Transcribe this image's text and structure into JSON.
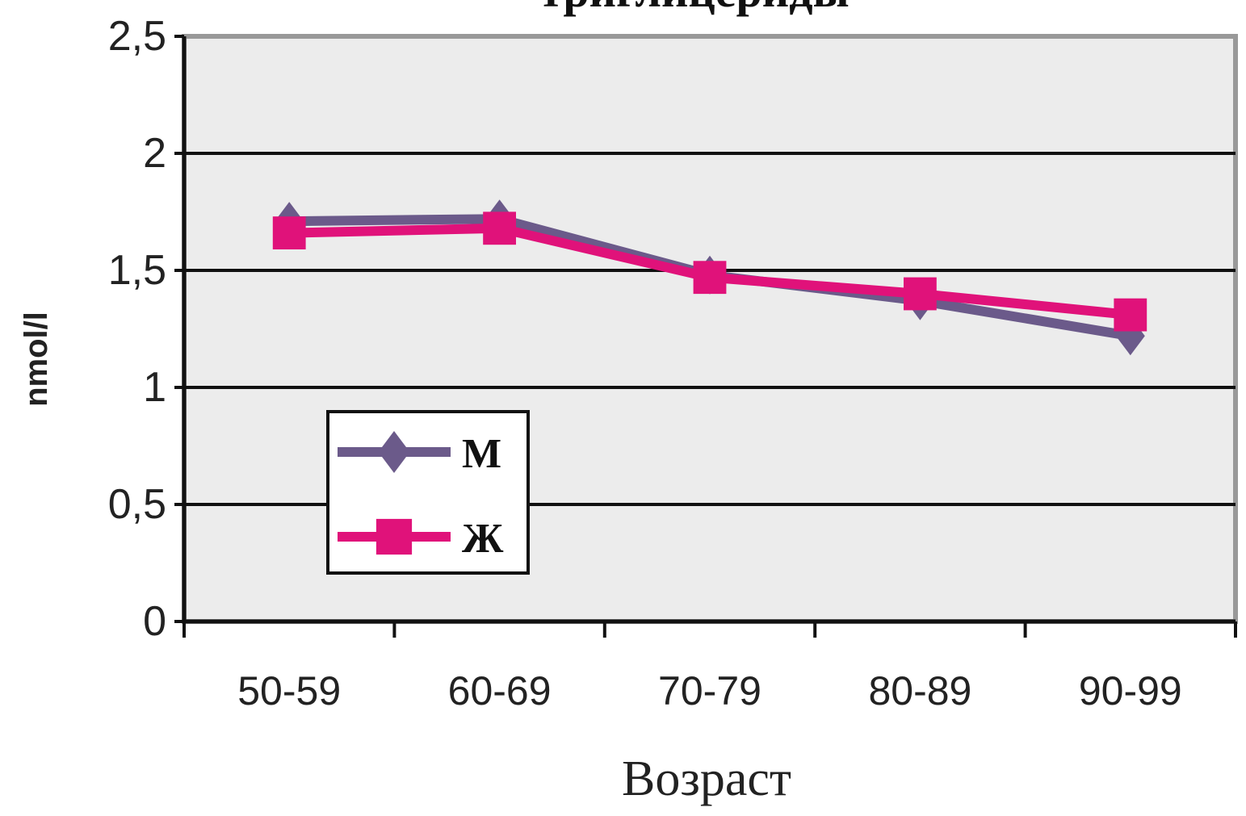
{
  "chart_data": {
    "type": "line",
    "title": "триглицериды",
    "xlabel": "Возраст",
    "ylabel": "nmol/l",
    "categories": [
      "50-59",
      "60-69",
      "70-79",
      "80-89",
      "90-99"
    ],
    "ylim": [
      0,
      2.5
    ],
    "yticks": [
      "0",
      "0,5",
      "1",
      "1,5",
      "2",
      "2,5"
    ],
    "ytick_values": [
      0,
      0.5,
      1,
      1.5,
      2,
      2.5
    ],
    "grid": true,
    "legend_position": "lower-left",
    "series": [
      {
        "name": "М",
        "values": [
          1.71,
          1.72,
          1.48,
          1.37,
          1.22
        ],
        "color": "#6b5a8a",
        "marker": "diamond"
      },
      {
        "name": "Ж",
        "values": [
          1.66,
          1.68,
          1.47,
          1.4,
          1.31
        ],
        "color": "#e0127a",
        "marker": "square"
      }
    ],
    "plot_background": "#ececec",
    "gridline_color": "#111111"
  }
}
